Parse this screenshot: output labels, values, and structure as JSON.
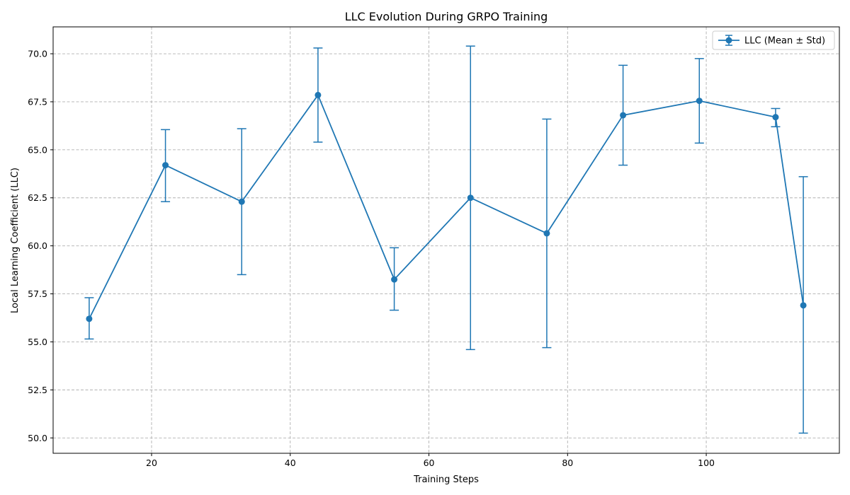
{
  "chart_data": {
    "type": "line",
    "title": "LLC Evolution During GRPO Training",
    "xlabel": "Training Steps",
    "ylabel": "Local Learning Coefficient (LLC)",
    "xlim": [
      5.8,
      119.2
    ],
    "ylim": [
      49.2,
      71.4
    ],
    "x_ticks": [
      20,
      40,
      60,
      80,
      100
    ],
    "x_tick_labels": [
      "20",
      "40",
      "60",
      "80",
      "100"
    ],
    "y_ticks": [
      50.0,
      52.5,
      55.0,
      57.5,
      60.0,
      62.5,
      65.0,
      67.5,
      70.0
    ],
    "y_tick_labels": [
      "50.0",
      "52.5",
      "55.0",
      "57.5",
      "60.0",
      "62.5",
      "65.0",
      "67.5",
      "70.0"
    ],
    "grid": true,
    "legend_position": "top-right",
    "series": [
      {
        "name": "LLC (Mean ± Std)",
        "color": "#1f77b4",
        "marker": "circle",
        "points": [
          {
            "x": 11,
            "y": 56.2,
            "lower": 55.15,
            "upper": 57.3
          },
          {
            "x": 22,
            "y": 64.2,
            "lower": 62.3,
            "upper": 66.05
          },
          {
            "x": 33,
            "y": 62.3,
            "lower": 58.5,
            "upper": 66.1
          },
          {
            "x": 44,
            "y": 67.85,
            "lower": 65.4,
            "upper": 70.3
          },
          {
            "x": 55,
            "y": 58.25,
            "lower": 56.65,
            "upper": 59.9
          },
          {
            "x": 66,
            "y": 62.5,
            "lower": 54.6,
            "upper": 70.4
          },
          {
            "x": 77,
            "y": 60.65,
            "lower": 54.7,
            "upper": 66.6
          },
          {
            "x": 88,
            "y": 66.8,
            "lower": 64.2,
            "upper": 69.4
          },
          {
            "x": 99,
            "y": 67.55,
            "lower": 65.35,
            "upper": 69.75
          },
          {
            "x": 110,
            "y": 66.7,
            "lower": 66.2,
            "upper": 67.15
          },
          {
            "x": 114,
            "y": 56.9,
            "lower": 50.25,
            "upper": 63.6
          }
        ]
      }
    ]
  }
}
